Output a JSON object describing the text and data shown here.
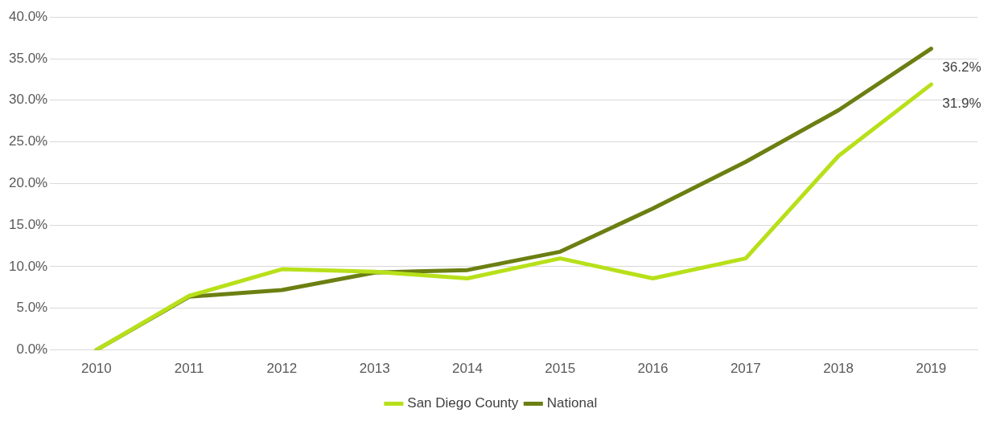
{
  "chart_data": {
    "type": "line",
    "categories": [
      "2010",
      "2011",
      "2012",
      "2013",
      "2014",
      "2015",
      "2016",
      "2017",
      "2018",
      "2019"
    ],
    "series": [
      {
        "name": "San Diego County",
        "color": "#b8e01a",
        "values": [
          0,
          6.5,
          9.7,
          9.4,
          8.6,
          11.0,
          8.6,
          11.0,
          23.3,
          31.9
        ],
        "value_labels": [
          null,
          null,
          null,
          null,
          null,
          null,
          null,
          null,
          null,
          "31.9%"
        ]
      },
      {
        "name": "National",
        "color": "#6b7f12",
        "values": [
          0,
          6.4,
          7.2,
          9.3,
          9.6,
          11.8,
          17.0,
          22.6,
          28.8,
          36.2
        ],
        "value_labels": [
          null,
          null,
          null,
          null,
          null,
          null,
          null,
          null,
          null,
          "36.2%"
        ]
      }
    ],
    "ylim": [
      0,
      40
    ],
    "yticks": [
      {
        "value": 0,
        "label": "0.0%"
      },
      {
        "value": 5,
        "label": "5.0%"
      },
      {
        "value": 10,
        "label": "10.0%"
      },
      {
        "value": 15,
        "label": "15.0%"
      },
      {
        "value": 20,
        "label": "20.0%"
      },
      {
        "value": 25,
        "label": "25.0%"
      },
      {
        "value": 30,
        "label": "30.0%"
      },
      {
        "value": 35,
        "label": "35.0%"
      },
      {
        "value": 40,
        "label": "40.0%"
      }
    ],
    "grid": "y",
    "legend": "bottom",
    "marker": "none",
    "line_style": "solid"
  }
}
